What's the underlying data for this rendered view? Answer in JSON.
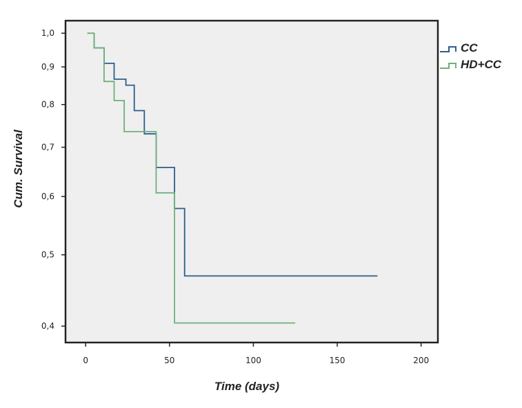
{
  "chart_data": {
    "type": "line",
    "step": true,
    "xlabel": "Time (days)",
    "ylabel": "Cum. Survival",
    "xlim": [
      -12,
      210
    ],
    "ylim": [
      0.38,
      1.04
    ],
    "y_scale": "log",
    "x_ticks": [
      0,
      50,
      100,
      150,
      200
    ],
    "x_tick_labels": [
      "0",
      "50",
      "100",
      "150",
      "200"
    ],
    "y_ticks": [
      1.0,
      0.9,
      0.8,
      0.7,
      0.6,
      0.5,
      0.4
    ],
    "y_tick_labels": [
      "1,0",
      "0,9",
      "0,8",
      "0,7",
      "0,6",
      "0,5",
      "0,4"
    ],
    "grid": false,
    "legend_position": "outside-top-right",
    "series": [
      {
        "name": "CC",
        "color": "#2a5d8c",
        "x": [
          5,
          5,
          11,
          11,
          17,
          17,
          24,
          24,
          29,
          29,
          35,
          35,
          42,
          42,
          53,
          53,
          59,
          59,
          174
        ],
        "y": [
          1.0,
          0.955,
          0.955,
          0.91,
          0.91,
          0.866,
          0.866,
          0.85,
          0.85,
          0.785,
          0.785,
          0.73,
          0.73,
          0.657,
          0.657,
          0.578,
          0.578,
          0.468,
          0.468
        ]
      },
      {
        "name": "HD+CC",
        "color": "#6eb07a",
        "x": [
          1,
          5,
          5,
          11,
          11,
          17,
          17,
          23,
          23,
          42,
          42,
          53,
          53,
          125
        ],
        "y": [
          1.0,
          1.0,
          0.955,
          0.955,
          0.86,
          0.86,
          0.81,
          0.81,
          0.735,
          0.735,
          0.607,
          0.607,
          0.404,
          0.404
        ]
      }
    ]
  }
}
